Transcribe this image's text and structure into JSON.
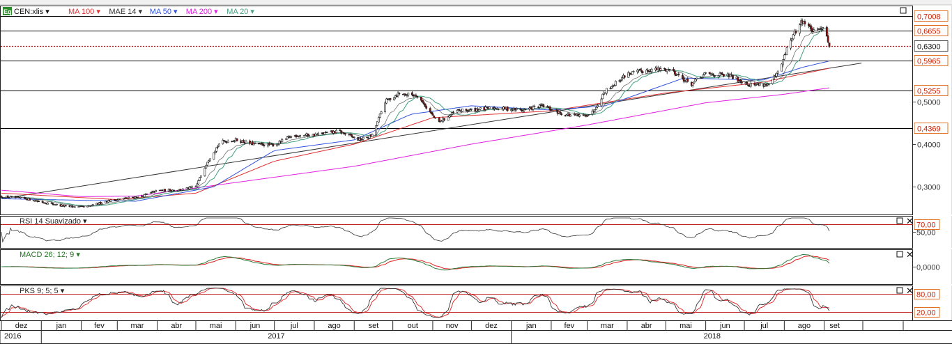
{
  "toolbar": {
    "instrument_badge": "Eq",
    "instrument": "CEN:xlis",
    "indicators": [
      {
        "label": "MA 100",
        "color": "#e03030"
      },
      {
        "label": "MAE 14",
        "color": "#333333"
      },
      {
        "label": "MA 50",
        "color": "#3050e0"
      },
      {
        "label": "MA 200",
        "color": "#e020e0"
      },
      {
        "label": "MA 20",
        "color": "#40a080"
      }
    ]
  },
  "colors": {
    "up_candle": "#ffffff",
    "down_candle": "#8b1010",
    "price_line": "#cc0000",
    "ma20": "#40a080",
    "ma50": "#3050e0",
    "ma100": "#e03030",
    "ma200": "#e020e0",
    "mae14": "#333333",
    "trendline": "#333333",
    "badge_bg": "#2e8b2e",
    "price_tag_border": "#e07020",
    "price_tag_text": "#cc2000"
  },
  "chart_data": {
    "type": "candlestick",
    "x_start": "2016-12-01",
    "x_end": "2018-09-05",
    "price_axis": {
      "ticks": [
        "0,3000",
        "0,4000",
        "0,5000"
      ],
      "tick_values": [
        0.3,
        0.4,
        0.5
      ],
      "ylim": [
        0.235,
        0.725
      ],
      "current_price": {
        "label": "0,6300",
        "value": 0.63
      }
    },
    "horizontal_levels": [
      {
        "label": "0,7008",
        "value": 0.7008
      },
      {
        "label": "0,6655",
        "value": 0.6655
      },
      {
        "label": "0,5965",
        "value": 0.5965
      },
      {
        "label": "0,5255",
        "value": 0.5255
      },
      {
        "label": "0,4369",
        "value": 0.4369
      }
    ],
    "trendline": {
      "from": [
        "2016-12-01",
        0.272
      ],
      "to": [
        "2018-09-30",
        0.59
      ]
    },
    "close": [
      [
        "2016-12-01",
        0.277
      ],
      [
        "2016-12-20",
        0.272
      ],
      [
        "2017-01-05",
        0.262
      ],
      [
        "2017-01-20",
        0.254
      ],
      [
        "2017-02-05",
        0.252
      ],
      [
        "2017-02-20",
        0.266
      ],
      [
        "2017-03-05",
        0.272
      ],
      [
        "2017-03-20",
        0.278
      ],
      [
        "2017-04-01",
        0.291
      ],
      [
        "2017-04-20",
        0.293
      ],
      [
        "2017-05-01",
        0.3
      ],
      [
        "2017-05-10",
        0.36
      ],
      [
        "2017-05-20",
        0.405
      ],
      [
        "2017-06-01",
        0.41
      ],
      [
        "2017-06-15",
        0.4
      ],
      [
        "2017-07-01",
        0.398
      ],
      [
        "2017-07-15",
        0.42
      ],
      [
        "2017-08-01",
        0.422
      ],
      [
        "2017-08-20",
        0.43
      ],
      [
        "2017-09-05",
        0.41
      ],
      [
        "2017-09-15",
        0.42
      ],
      [
        "2017-09-25",
        0.5
      ],
      [
        "2017-10-05",
        0.518
      ],
      [
        "2017-10-20",
        0.515
      ],
      [
        "2017-11-05",
        0.45
      ],
      [
        "2017-11-20",
        0.478
      ],
      [
        "2017-12-01",
        0.48
      ],
      [
        "2017-12-20",
        0.485
      ],
      [
        "2018-01-10",
        0.48
      ],
      [
        "2018-01-25",
        0.49
      ],
      [
        "2018-02-10",
        0.47
      ],
      [
        "2018-02-25",
        0.465
      ],
      [
        "2018-03-05",
        0.475
      ],
      [
        "2018-03-15",
        0.525
      ],
      [
        "2018-04-01",
        0.565
      ],
      [
        "2018-04-20",
        0.575
      ],
      [
        "2018-05-05",
        0.575
      ],
      [
        "2018-05-20",
        0.54
      ],
      [
        "2018-06-01",
        0.565
      ],
      [
        "2018-06-20",
        0.56
      ],
      [
        "2018-07-05",
        0.54
      ],
      [
        "2018-07-20",
        0.54
      ],
      [
        "2018-07-28",
        0.57
      ],
      [
        "2018-08-05",
        0.64
      ],
      [
        "2018-08-15",
        0.69
      ],
      [
        "2018-08-25",
        0.66
      ],
      [
        "2018-09-01",
        0.68
      ],
      [
        "2018-09-05",
        0.63
      ]
    ],
    "moving_averages": {
      "MA 200": [
        [
          "2016-12-01",
          0.292
        ],
        [
          "2017-02-01",
          0.277
        ],
        [
          "2017-03-15",
          0.278
        ],
        [
          "2017-06-01",
          0.31
        ],
        [
          "2017-09-01",
          0.348
        ],
        [
          "2017-12-01",
          0.4
        ],
        [
          "2018-03-01",
          0.445
        ],
        [
          "2018-06-01",
          0.497
        ],
        [
          "2018-08-01",
          0.517
        ],
        [
          "2018-09-05",
          0.532
        ]
      ],
      "MA 100": [
        [
          "2016-12-01",
          0.285
        ],
        [
          "2017-03-01",
          0.27
        ],
        [
          "2017-05-01",
          0.285
        ],
        [
          "2017-07-01",
          0.36
        ],
        [
          "2017-09-01",
          0.4
        ],
        [
          "2017-11-01",
          0.462
        ],
        [
          "2018-02-01",
          0.478
        ],
        [
          "2018-05-01",
          0.52
        ],
        [
          "2018-07-15",
          0.545
        ],
        [
          "2018-09-05",
          0.578
        ]
      ],
      "MA 50": [
        [
          "2016-12-01",
          0.272
        ],
        [
          "2017-03-15",
          0.266
        ],
        [
          "2017-05-15",
          0.3
        ],
        [
          "2017-07-01",
          0.385
        ],
        [
          "2017-09-01",
          0.41
        ],
        [
          "2017-10-15",
          0.47
        ],
        [
          "2017-12-01",
          0.49
        ],
        [
          "2018-02-01",
          0.48
        ],
        [
          "2018-03-15",
          0.49
        ],
        [
          "2018-05-15",
          0.555
        ],
        [
          "2018-07-15",
          0.55
        ],
        [
          "2018-08-15",
          0.58
        ],
        [
          "2018-09-05",
          0.595
        ]
      ]
    },
    "sub_panels": [
      {
        "label": "RSI 14 Suavizado",
        "levels": [
          {
            "label": "70,00",
            "value": 70
          }
        ],
        "ticks": [
          {
            "label": "50,00",
            "value": 50
          }
        ],
        "ylim": [
          15,
          85
        ]
      },
      {
        "label": "MACD 26; 12; 9",
        "ticks": [
          {
            "label": "0,0000",
            "value": 0
          }
        ],
        "ylim": [
          -1,
          1
        ]
      },
      {
        "label": "PKS 9; 5; 5",
        "levels": [
          {
            "label": "80,00",
            "value": 80
          },
          {
            "label": "20,00",
            "value": 20
          }
        ],
        "ylim": [
          0,
          100
        ]
      }
    ],
    "x_axis": {
      "months": [
        {
          "label": "dez",
          "date": "2016-12-01"
        },
        {
          "label": "jan",
          "date": "2017-01-01"
        },
        {
          "label": "fev",
          "date": "2017-02-01"
        },
        {
          "label": "mar",
          "date": "2017-03-01"
        },
        {
          "label": "abr",
          "date": "2017-04-01"
        },
        {
          "label": "mai",
          "date": "2017-05-01"
        },
        {
          "label": "jun",
          "date": "2017-06-01"
        },
        {
          "label": "jul",
          "date": "2017-07-01"
        },
        {
          "label": "ago",
          "date": "2017-08-01"
        },
        {
          "label": "set",
          "date": "2017-09-01"
        },
        {
          "label": "out",
          "date": "2017-10-01"
        },
        {
          "label": "nov",
          "date": "2017-11-01"
        },
        {
          "label": "dez",
          "date": "2017-12-01"
        },
        {
          "label": "jan",
          "date": "2018-01-01"
        },
        {
          "label": "fev",
          "date": "2018-02-01"
        },
        {
          "label": "mar",
          "date": "2018-03-01"
        },
        {
          "label": "abr",
          "date": "2018-04-01"
        },
        {
          "label": "mai",
          "date": "2018-05-01"
        },
        {
          "label": "jun",
          "date": "2018-06-01"
        },
        {
          "label": "jul",
          "date": "2018-07-01"
        },
        {
          "label": "ago",
          "date": "2018-08-01"
        },
        {
          "label": "set",
          "date": "2018-09-01"
        }
      ],
      "years": [
        {
          "label": "2016",
          "date": "2016-12-01"
        },
        {
          "label": "2017",
          "date": "2017-01-01"
        },
        {
          "label": "2018",
          "date": "2018-01-01"
        }
      ]
    }
  }
}
